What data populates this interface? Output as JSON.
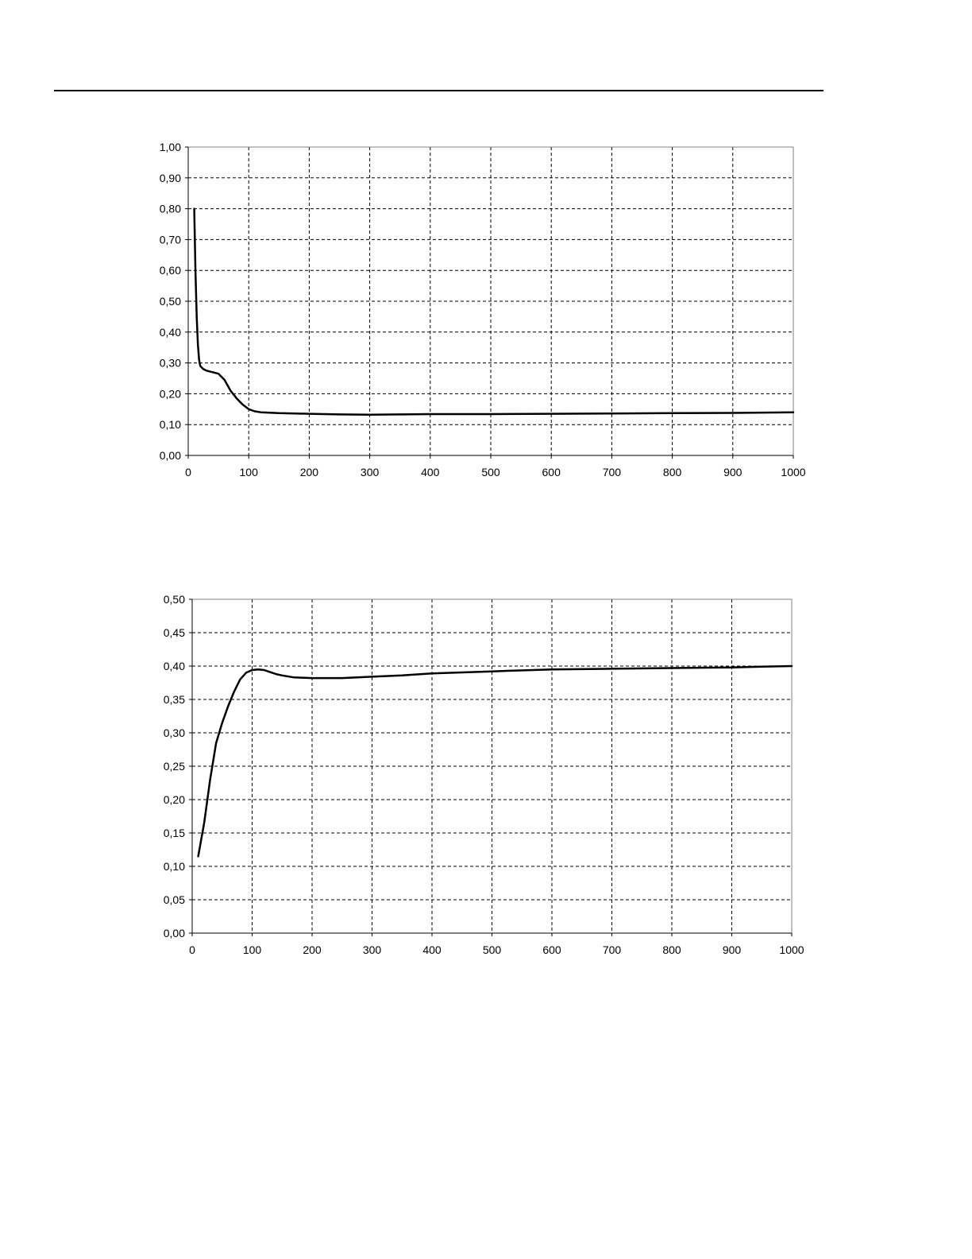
{
  "page": {
    "background": "#ffffff",
    "line_color": "#000000",
    "grid_color": "#000000"
  },
  "chart_data": [
    {
      "type": "line",
      "title": "",
      "xlabel": "",
      "ylabel": "",
      "xlim": [
        0,
        1000
      ],
      "ylim": [
        0,
        1
      ],
      "grid": true,
      "grid_style": "dashed",
      "legend": "none",
      "x_ticks": [
        "0",
        "100",
        "200",
        "300",
        "400",
        "500",
        "600",
        "700",
        "800",
        "900",
        "1000"
      ],
      "y_ticks": [
        "0,00",
        "0,10",
        "0,20",
        "0,30",
        "0,40",
        "0,50",
        "0,60",
        "0,70",
        "0,80",
        "0,90",
        "1,00"
      ],
      "x_tick_values": [
        0,
        100,
        200,
        300,
        400,
        500,
        600,
        700,
        800,
        900,
        1000
      ],
      "y_tick_values": [
        0,
        0.1,
        0.2,
        0.3,
        0.4,
        0.5,
        0.6,
        0.7,
        0.8,
        0.9,
        1.0
      ],
      "series": [
        {
          "x": [
            10,
            12,
            14,
            16,
            18,
            20,
            25,
            30,
            40,
            50,
            60,
            70,
            80,
            90,
            100,
            110,
            120,
            150,
            200,
            250,
            300,
            350,
            400,
            500,
            600,
            700,
            800,
            900,
            950,
            1000
          ],
          "y": [
            0.8,
            0.6,
            0.45,
            0.36,
            0.31,
            0.29,
            0.28,
            0.275,
            0.27,
            0.265,
            0.245,
            0.21,
            0.185,
            0.165,
            0.15,
            0.143,
            0.14,
            0.137,
            0.135,
            0.133,
            0.132,
            0.133,
            0.134,
            0.134,
            0.135,
            0.136,
            0.137,
            0.138,
            0.139,
            0.14
          ]
        }
      ]
    },
    {
      "type": "line",
      "title": "",
      "xlabel": "",
      "ylabel": "",
      "xlim": [
        0,
        1000
      ],
      "ylim": [
        0,
        0.5
      ],
      "grid": true,
      "grid_style": "dashed",
      "legend": "none",
      "x_ticks": [
        "0",
        "100",
        "200",
        "300",
        "400",
        "500",
        "600",
        "700",
        "800",
        "900",
        "1000"
      ],
      "y_ticks": [
        "0,00",
        "0,05",
        "0,10",
        "0,15",
        "0,20",
        "0,25",
        "0,30",
        "0,35",
        "0,40",
        "0,45",
        "0,50"
      ],
      "x_tick_values": [
        0,
        100,
        200,
        300,
        400,
        500,
        600,
        700,
        800,
        900,
        1000
      ],
      "y_tick_values": [
        0,
        0.05,
        0.1,
        0.15,
        0.2,
        0.25,
        0.3,
        0.35,
        0.4,
        0.45,
        0.5
      ],
      "series": [
        {
          "x": [
            10,
            20,
            30,
            40,
            50,
            60,
            70,
            80,
            90,
            100,
            110,
            120,
            130,
            140,
            150,
            170,
            200,
            250,
            300,
            350,
            400,
            500,
            600,
            700,
            800,
            900,
            950,
            1000
          ],
          "y": [
            0.115,
            0.165,
            0.23,
            0.285,
            0.315,
            0.34,
            0.362,
            0.38,
            0.39,
            0.394,
            0.395,
            0.394,
            0.391,
            0.388,
            0.386,
            0.383,
            0.382,
            0.382,
            0.384,
            0.386,
            0.389,
            0.392,
            0.395,
            0.396,
            0.397,
            0.398,
            0.399,
            0.4
          ]
        }
      ]
    }
  ]
}
